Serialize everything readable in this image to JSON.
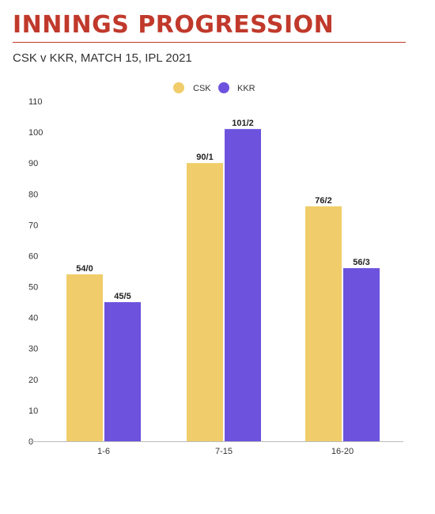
{
  "header": {
    "title": "INNINGS PROGRESSION",
    "subtitle": "CSK v KKR, MATCH 15, IPL 2021"
  },
  "colors": {
    "title": "#c0392b",
    "csk": "#f0cd6a",
    "kkr": "#6c52dd"
  },
  "chart_data": {
    "type": "bar",
    "title": "INNINGS PROGRESSION",
    "subtitle": "CSK v KKR, MATCH 15, IPL 2021",
    "categories": [
      "1-6",
      "7-15",
      "16-20"
    ],
    "series": [
      {
        "name": "CSK",
        "values": [
          54,
          90,
          76
        ],
        "labels": [
          "54/0",
          "90/1",
          "76/2"
        ],
        "color": "#f0cd6a"
      },
      {
        "name": "KKR",
        "values": [
          45,
          101,
          56
        ],
        "labels": [
          "45/5",
          "101/2",
          "56/3"
        ],
        "color": "#6c52dd"
      }
    ],
    "ylim": [
      0,
      110
    ],
    "yticks": [
      0,
      10,
      20,
      30,
      40,
      50,
      60,
      70,
      80,
      90,
      100,
      110
    ],
    "legend": "top-center",
    "grid": false
  }
}
